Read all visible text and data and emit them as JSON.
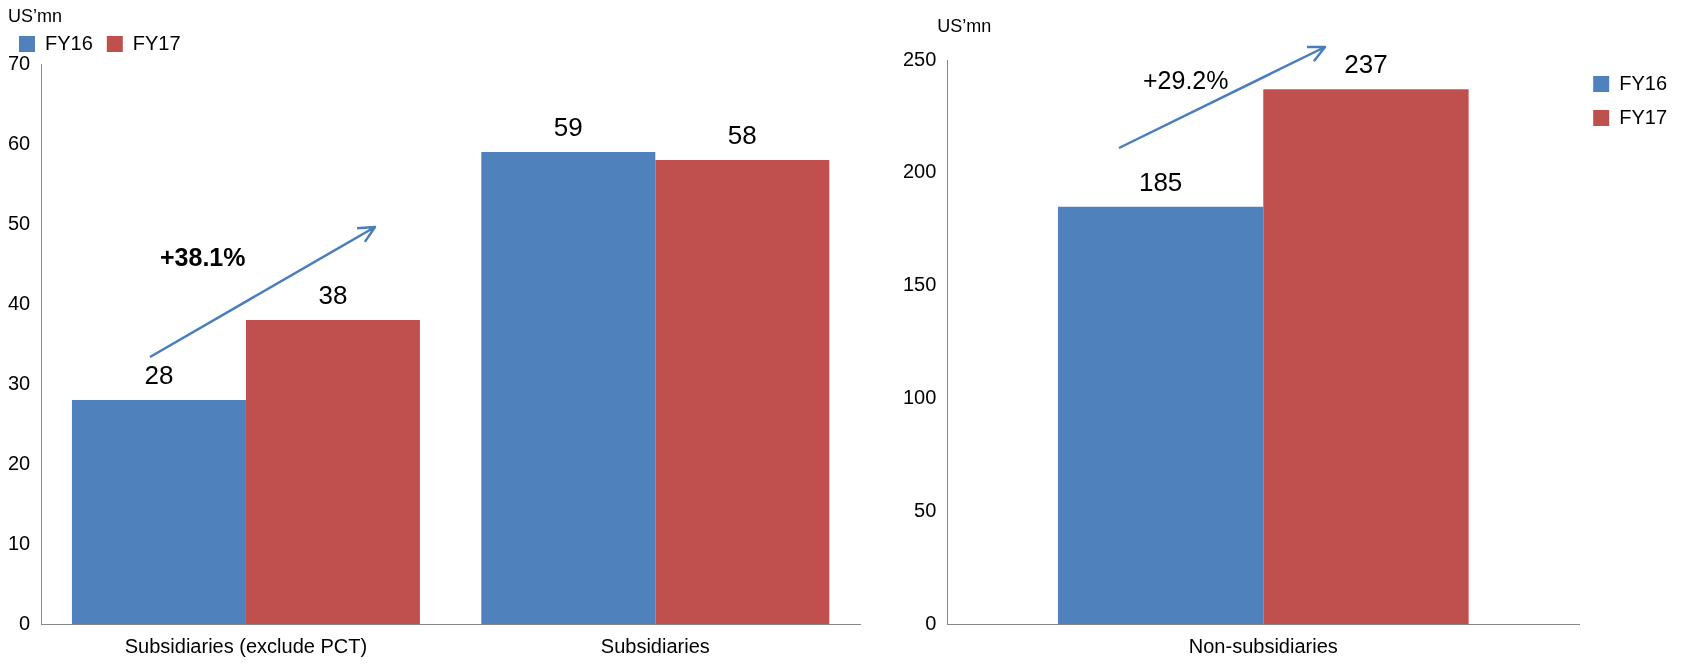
{
  "chart_data": [
    {
      "type": "bar",
      "ylabel": "US’mn",
      "categories": [
        "Subsidiaries (exclude PCT)",
        "Subsidiaries"
      ],
      "series": [
        {
          "name": "FY16",
          "color": "#4f81bd",
          "values": [
            28,
            59
          ]
        },
        {
          "name": "FY17",
          "color": "#c0504d",
          "values": [
            38,
            58
          ]
        }
      ],
      "ylim": [
        0,
        70
      ],
      "yticks": [
        0,
        10,
        20,
        30,
        40,
        50,
        60,
        70
      ],
      "grid": false,
      "legend": "top left",
      "data_labels": true,
      "annotations": [
        "+38.1%"
      ]
    },
    {
      "type": "bar",
      "ylabel": "US’mn",
      "categories": [
        "Non-subsidiaries"
      ],
      "series": [
        {
          "name": "FY16",
          "color": "#4f81bd",
          "values": [
            185
          ]
        },
        {
          "name": "FY17",
          "color": "#c0504d",
          "values": [
            237
          ]
        }
      ],
      "ylim": [
        0,
        250
      ],
      "yticks": [
        0,
        50,
        100,
        150,
        200,
        250
      ],
      "grid": false,
      "legend": "top right",
      "data_labels": true,
      "annotations": [
        "+29.2%"
      ]
    }
  ]
}
